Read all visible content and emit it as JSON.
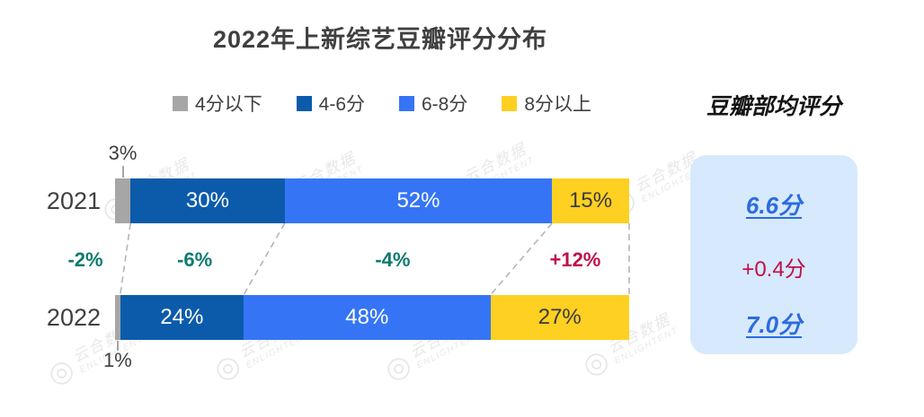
{
  "title": "2022年上新综艺豆瓣评分分布",
  "watermark": {
    "cn": "云合数据",
    "en": "ENLIGHTENT"
  },
  "legend": [
    {
      "label": "4分以下",
      "color": "#a6a6a6"
    },
    {
      "label": "4-6分",
      "color": "#0c5bab"
    },
    {
      "label": "6-8分",
      "color": "#3575f5"
    },
    {
      "label": "8分以上",
      "color": "#fdd021"
    }
  ],
  "chart_data": {
    "type": "bar",
    "variant": "horizontal-stacked-100pct",
    "title": "2022年上新综艺豆瓣评分分布",
    "categories": [
      "2021",
      "2022"
    ],
    "series": [
      {
        "name": "4分以下",
        "color": "#a6a6a6",
        "values": [
          3,
          1
        ],
        "label_style": "outside",
        "label_color": "#3f3f3f"
      },
      {
        "name": "4-6分",
        "color": "#0c5bab",
        "values": [
          30,
          24
        ],
        "label_style": "inside",
        "label_color": "#ffffff"
      },
      {
        "name": "6-8分",
        "color": "#3575f5",
        "values": [
          52,
          48
        ],
        "label_style": "inside",
        "label_color": "#ffffff"
      },
      {
        "name": "8分以上",
        "color": "#fdd021",
        "values": [
          15,
          27
        ],
        "label_style": "inside",
        "label_color": "#3a3a3a"
      }
    ],
    "value_suffix": "%",
    "xlim": [
      0,
      100
    ],
    "grid": false,
    "legend_position": "top",
    "outside_labels": [
      {
        "row": "2021",
        "label": "3%",
        "position": "above"
      },
      {
        "row": "2022",
        "label": "1%",
        "position": "below"
      }
    ],
    "yoy_deltas": [
      {
        "segment": "4分以下",
        "label": "-2%",
        "color": "#0d7a6e"
      },
      {
        "segment": "4-6分",
        "label": "-6%",
        "color": "#0d7a6e"
      },
      {
        "segment": "6-8分",
        "label": "-4%",
        "color": "#0d7a6e"
      },
      {
        "segment": "8分以上",
        "label": "+12%",
        "color": "#bf1049"
      }
    ]
  },
  "side_panel": {
    "title": "豆瓣部均评分",
    "values": [
      {
        "year": "2021",
        "label": "6.6分",
        "style": "score"
      },
      {
        "year": "",
        "label": "+0.4分",
        "style": "delta"
      },
      {
        "year": "2022",
        "label": "7.0分",
        "style": "score"
      }
    ],
    "score_color": "#2b6be0",
    "delta_color": "#c01048",
    "panel_bg": "#d7e9fc"
  }
}
